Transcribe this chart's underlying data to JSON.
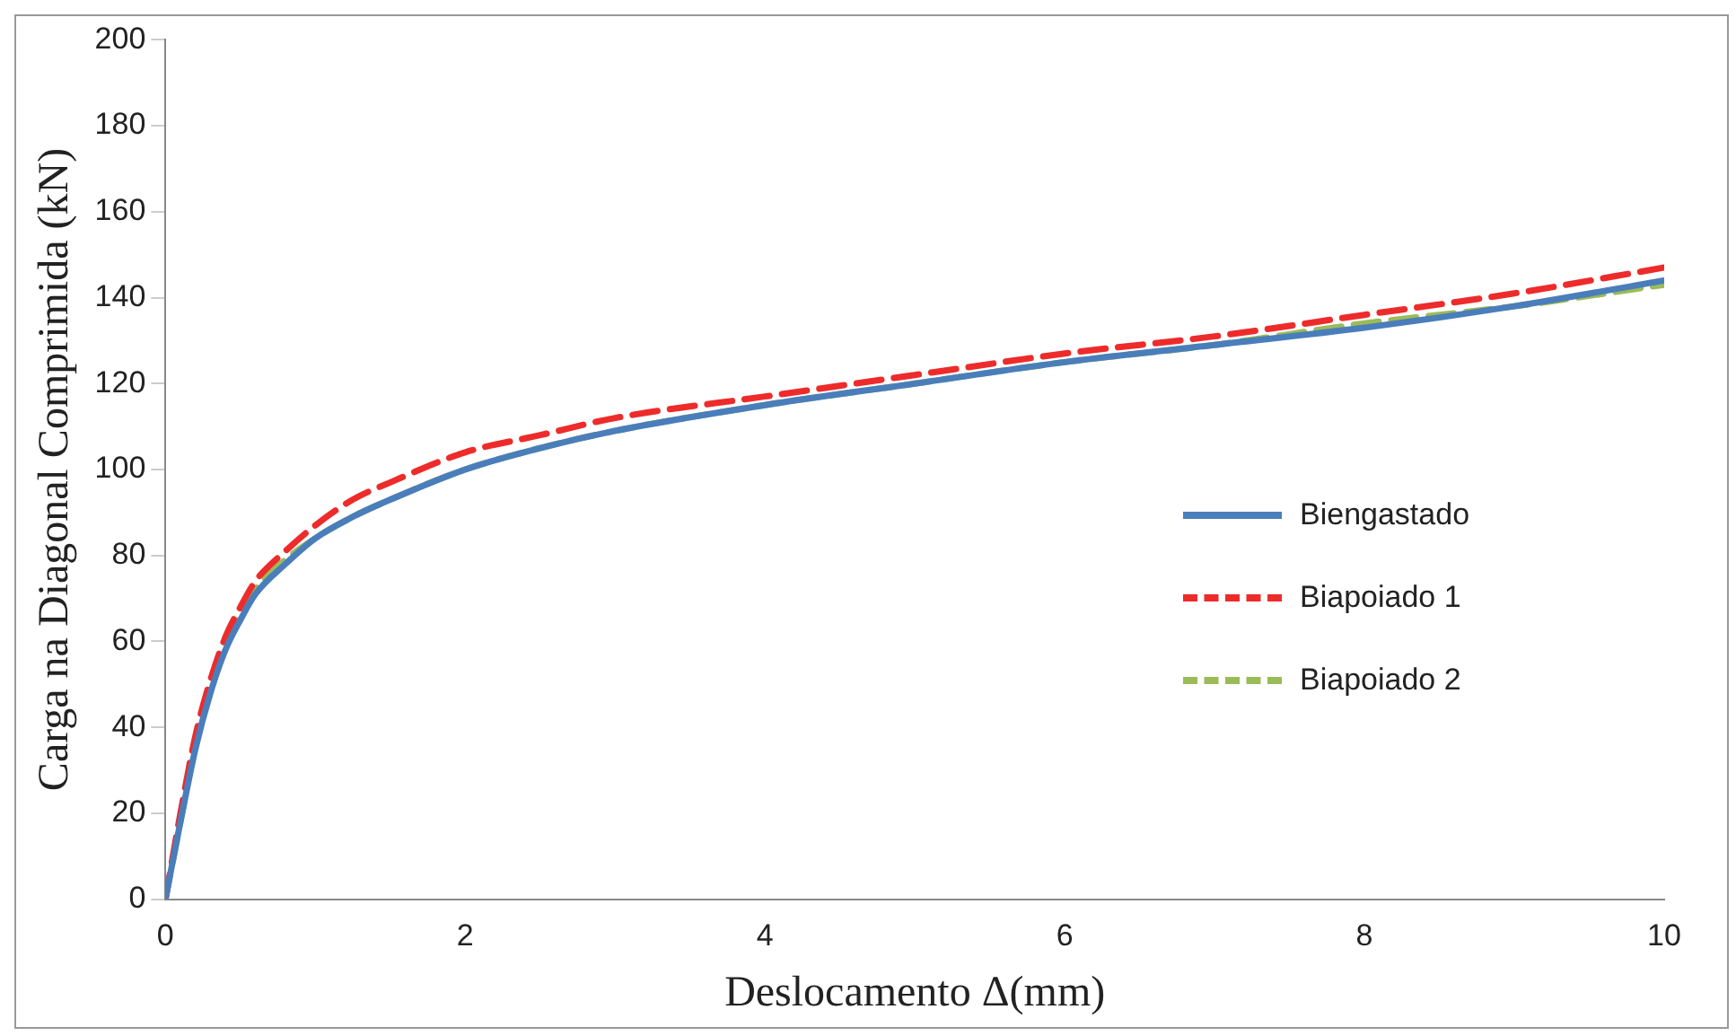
{
  "chart_data": {
    "type": "line",
    "xlabel": "Deslocamento Δ(mm)",
    "ylabel": "Carga na Diagonal Comprimida (kN)",
    "x": [
      0,
      0.1,
      0.2,
      0.3,
      0.4,
      0.5,
      0.6,
      0.8,
      1,
      1.25,
      1.5,
      2,
      2.5,
      3,
      4,
      5,
      6,
      7,
      8,
      9,
      10
    ],
    "series": [
      {
        "name": "Biengastado",
        "color": "#4a7ebb",
        "line_style": "solid",
        "values": [
          0,
          18,
          35,
          48,
          58,
          65,
          71,
          78,
          84,
          89,
          93,
          100,
          105,
          109,
          115,
          120,
          125,
          129,
          133,
          138,
          144
        ]
      },
      {
        "name": "Biapoiado 1",
        "color": "#ee2b2b",
        "line_style": "dashed",
        "values": [
          0,
          20,
          38,
          51,
          61,
          68,
          74,
          81,
          87,
          93,
          97,
          104,
          108,
          112,
          117,
          122,
          127,
          131,
          136,
          141,
          147
        ]
      },
      {
        "name": "Biapoiado 2",
        "color": "#9bbb59",
        "line_style": "dashed",
        "values": [
          0,
          18,
          36,
          49,
          59,
          66,
          72,
          79,
          84,
          89,
          93,
          100,
          105,
          109,
          115,
          120,
          125,
          129,
          134,
          138,
          143
        ]
      }
    ],
    "xlim": [
      0,
      10
    ],
    "xticks": [
      0,
      2,
      4,
      6,
      8,
      10
    ],
    "ylim": [
      0,
      200
    ],
    "yticks": [
      0,
      20,
      40,
      60,
      80,
      100,
      120,
      140,
      160,
      180,
      200
    ],
    "grid": false,
    "legend": "right",
    "marker": "none"
  }
}
